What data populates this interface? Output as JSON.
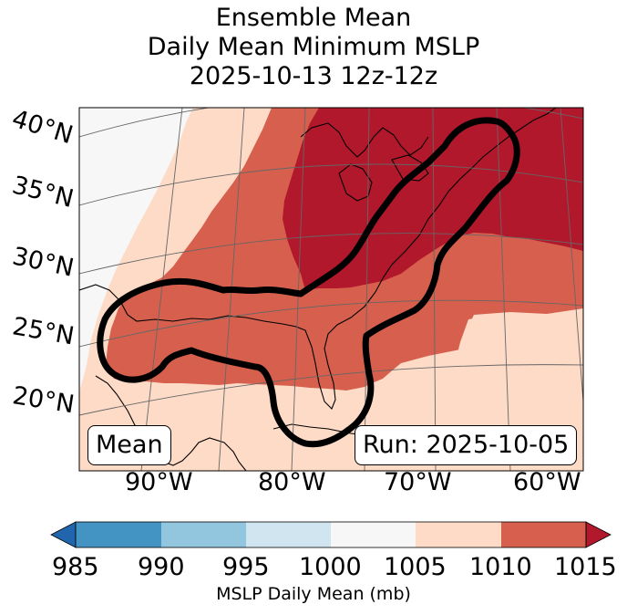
{
  "title": {
    "line1": "Ensemble Mean",
    "line2": "Daily Mean Minimum MSLP",
    "line3": "2025-10-13 12z-12z"
  },
  "map": {
    "lat_labels": [
      "40°N",
      "35°N",
      "30°N",
      "25°N",
      "20°N"
    ],
    "lon_labels": [
      "90°W",
      "80°W",
      "70°W",
      "60°W"
    ],
    "mean_label": "Mean",
    "run_label": "Run: 2025-10-05",
    "field_colors": {
      "below_1000": "#f7f7f7",
      "range_1005_1010": "#fddbc7",
      "range_1010_1015": "#d6604d",
      "above_1015": "#b2182b"
    },
    "contour_color": "#000000"
  },
  "colorbar": {
    "ticks": [
      "985",
      "990",
      "995",
      "1000",
      "1005",
      "1010",
      "1015"
    ],
    "colors": [
      "#4393c3",
      "#92c5de",
      "#d1e5f0",
      "#f7f7f7",
      "#fddbc7",
      "#d6604d"
    ],
    "under_color": "#2166ac",
    "over_color": "#b2182b",
    "label": "MSLP Daily Mean (mb)"
  }
}
